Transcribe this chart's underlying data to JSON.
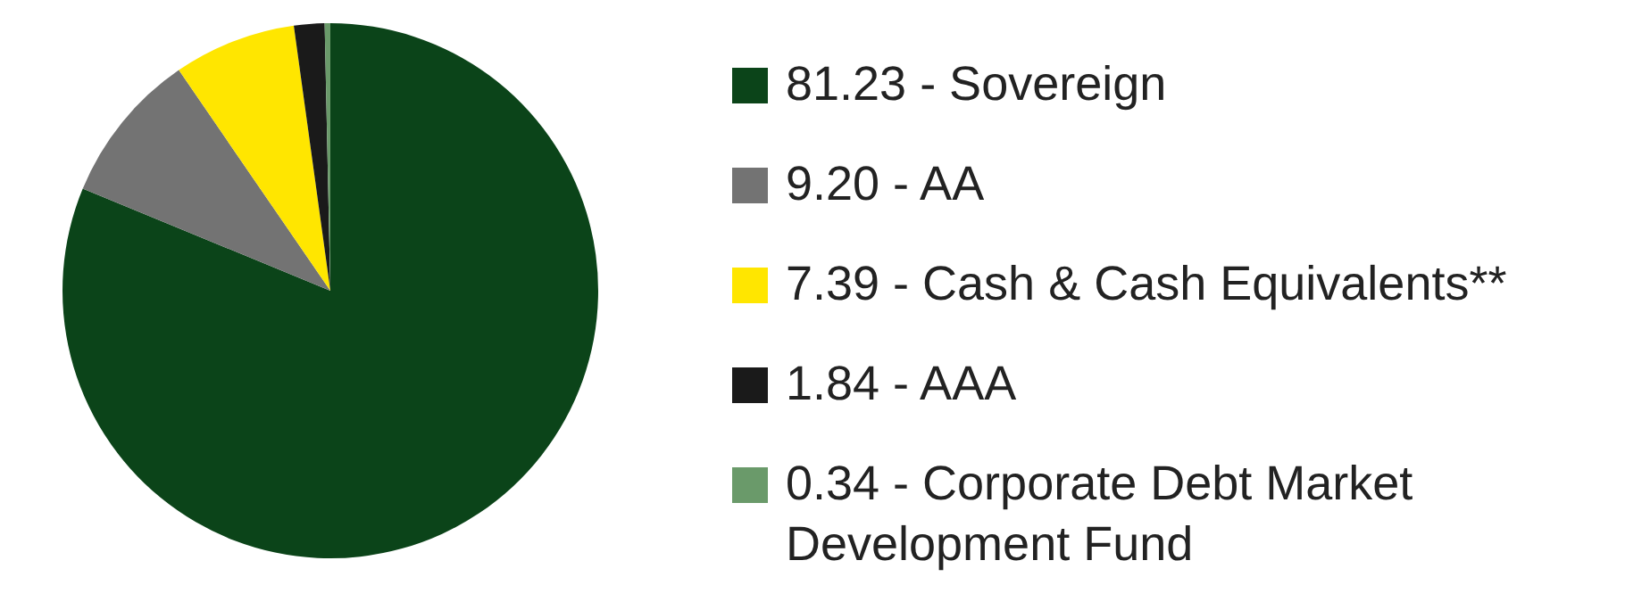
{
  "chart_data": {
    "type": "pie",
    "categories": [
      "81.23 - Sovereign",
      "9.20 - AA",
      "7.39 - Cash & Cash Equivalents**",
      "1.84 - AAA",
      "0.34 - Corporate Debt Market Development Fund"
    ],
    "values": [
      81.23,
      9.2,
      7.39,
      1.84,
      0.34
    ],
    "colors": [
      "#0b4419",
      "#737373",
      "#ffe600",
      "#1a1a1a",
      "#6a9a6a"
    ],
    "legend": "right"
  }
}
